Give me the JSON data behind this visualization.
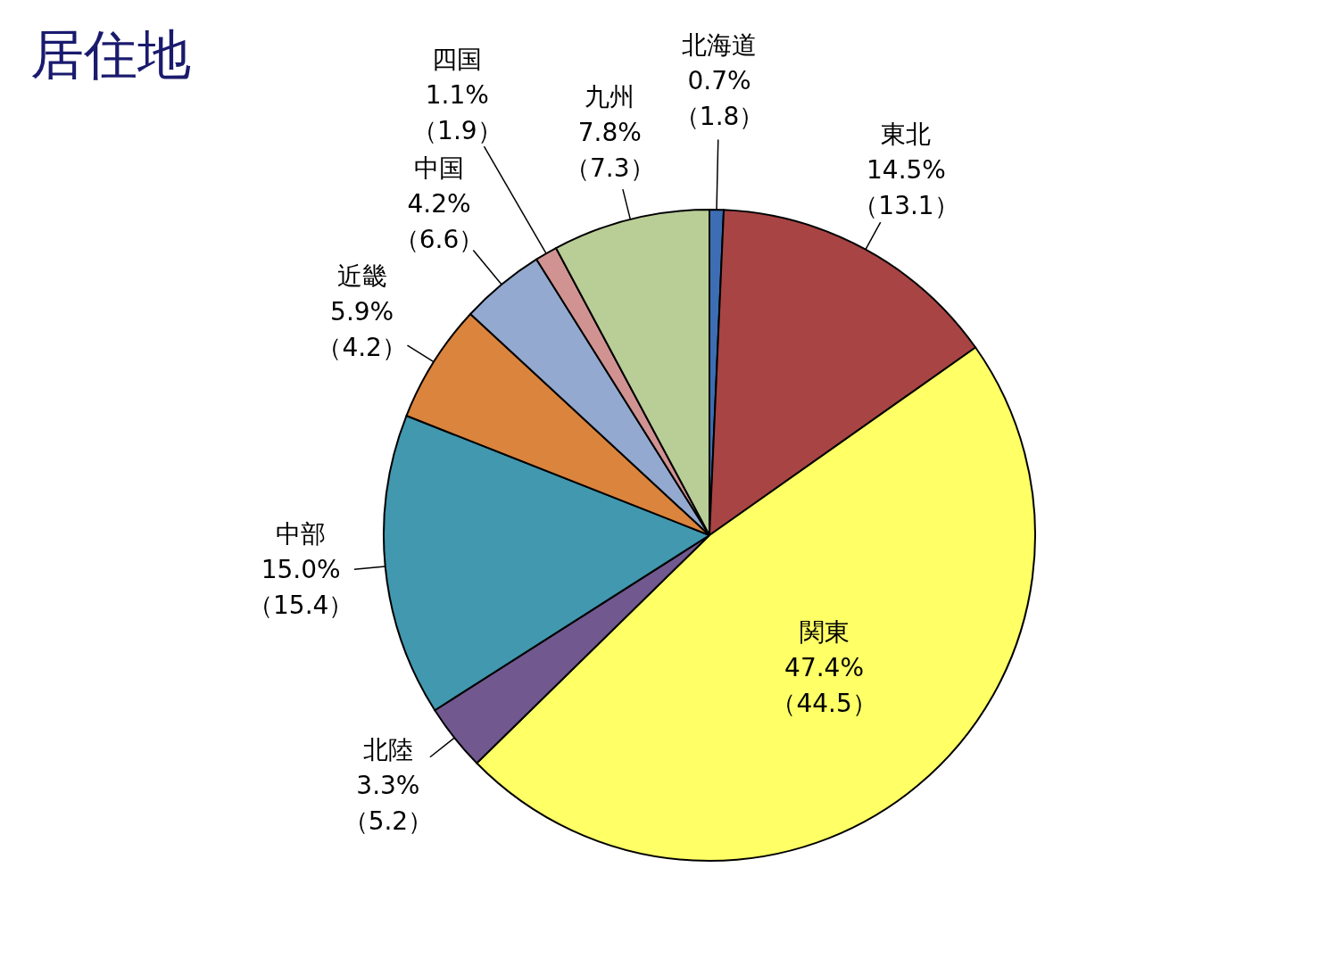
{
  "chart_data": {
    "type": "pie",
    "title": "居住地",
    "categories": [
      "北海道",
      "東北",
      "関東",
      "北陸",
      "中部",
      "近畿",
      "中国",
      "四国",
      "九州"
    ],
    "values": [
      0.7,
      14.5,
      47.4,
      3.3,
      15.0,
      5.9,
      4.2,
      1.1,
      7.8
    ],
    "colors": [
      "#3d6eb4",
      "#a84444",
      "#ffff66",
      "#71588f",
      "#4198af",
      "#db843d",
      "#93a9cf",
      "#d19392",
      "#b9cd96"
    ],
    "value_labels": [
      "0.7%\n（1.8）",
      "14.5%\n（13.1）",
      "47.4%\n（44.5）",
      "3.3%\n（5.2）",
      "15.0%\n（15.4）",
      "5.9%\n（4.2）",
      "4.2%\n（6.6）",
      "1.1%\n（1.9）",
      "7.8%\n（7.3）"
    ]
  }
}
